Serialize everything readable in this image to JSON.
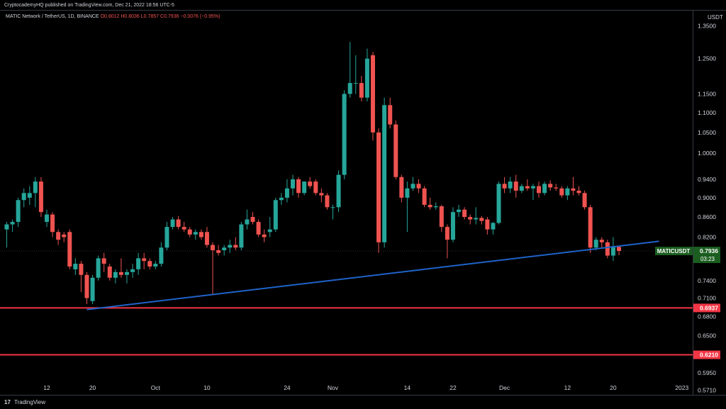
{
  "header": {
    "published": "CryptocademyHQ published on TradingView.com, Dec 21, 2022 18:56 UTC-5",
    "symbol": "MATIC Network / TetherUS, 1D, BINANCE",
    "ohlc": "O0.8012 H0.8036 L0.7857 C0.7936 −0.0076 (−0.95%)"
  },
  "price_axis": {
    "currency": "USDT",
    "symbol_tag": "MATICUSDT",
    "last_price": "0.7936",
    "countdown": "03:23"
  },
  "footer": {
    "brand": "TradingView",
    "logo": "17"
  },
  "colors": {
    "up": "#26a69a",
    "down": "#ef5350",
    "trendline": "#1f63c9",
    "support": "#f23645",
    "last_tag_bg": "#1b5e20"
  },
  "chart_data": {
    "type": "candlestick",
    "y_scale": "log",
    "ylim": [
      0.565,
      1.4
    ],
    "y_ticks": [
      "1.3500",
      "1.2500",
      "1.1500",
      "1.1000",
      "1.0500",
      "1.0000",
      "0.9400",
      "0.9000",
      "0.8600",
      "0.8200",
      "0.7400",
      "0.7100",
      "0.6800",
      "0.6500",
      "0.5950",
      "0.5710"
    ],
    "x_ticks": [
      "12",
      "20",
      "Oct",
      "10",
      "24",
      "Nov",
      "14",
      "22",
      "Dec",
      "12",
      "20",
      "2023"
    ],
    "support_levels": [
      {
        "value": 0.6937,
        "label": "0.6937"
      },
      {
        "value": 0.621,
        "label": "0.6210"
      }
    ],
    "trendline": {
      "from": [
        "Sep 19",
        0.691
      ],
      "to": [
        "Dec 28",
        0.812
      ]
    },
    "candles": [
      {
        "date": "Sep 5",
        "o": 0.835,
        "h": 0.85,
        "l": 0.8,
        "c": 0.845
      },
      {
        "date": "Sep 6",
        "o": 0.845,
        "h": 0.855,
        "l": 0.83,
        "c": 0.85
      },
      {
        "date": "Sep 7",
        "o": 0.85,
        "h": 0.9,
        "l": 0.84,
        "c": 0.895
      },
      {
        "date": "Sep 8",
        "o": 0.895,
        "h": 0.92,
        "l": 0.88,
        "c": 0.91
      },
      {
        "date": "Sep 9",
        "o": 0.9,
        "h": 0.925,
        "l": 0.885,
        "c": 0.91
      },
      {
        "date": "Sep 10",
        "o": 0.91,
        "h": 0.945,
        "l": 0.88,
        "c": 0.935
      },
      {
        "date": "Sep 11",
        "o": 0.935,
        "h": 0.945,
        "l": 0.86,
        "c": 0.87
      },
      {
        "date": "Sep 12",
        "o": 0.85,
        "h": 0.875,
        "l": 0.84,
        "c": 0.865
      },
      {
        "date": "Sep 13",
        "o": 0.865,
        "h": 0.87,
        "l": 0.82,
        "c": 0.83
      },
      {
        "date": "Sep 14",
        "o": 0.83,
        "h": 0.835,
        "l": 0.805,
        "c": 0.815
      },
      {
        "date": "Sep 15",
        "o": 0.825,
        "h": 0.83,
        "l": 0.81,
        "c": 0.82
      },
      {
        "date": "Sep 16",
        "o": 0.83,
        "h": 0.835,
        "l": 0.76,
        "c": 0.765
      },
      {
        "date": "Sep 17",
        "o": 0.76,
        "h": 0.78,
        "l": 0.75,
        "c": 0.77
      },
      {
        "date": "Sep 18",
        "o": 0.77,
        "h": 0.775,
        "l": 0.72,
        "c": 0.75
      },
      {
        "date": "Sep 19",
        "o": 0.75,
        "h": 0.755,
        "l": 0.7,
        "c": 0.71
      },
      {
        "date": "Sep 20",
        "o": 0.705,
        "h": 0.75,
        "l": 0.7,
        "c": 0.745
      },
      {
        "date": "Sep 21",
        "o": 0.745,
        "h": 0.785,
        "l": 0.74,
        "c": 0.78
      },
      {
        "date": "Sep 22",
        "o": 0.78,
        "h": 0.79,
        "l": 0.755,
        "c": 0.77
      },
      {
        "date": "Sep 23",
        "o": 0.765,
        "h": 0.77,
        "l": 0.74,
        "c": 0.745
      },
      {
        "date": "Sep 24",
        "o": 0.745,
        "h": 0.76,
        "l": 0.735,
        "c": 0.755
      },
      {
        "date": "Sep 25",
        "o": 0.755,
        "h": 0.78,
        "l": 0.745,
        "c": 0.75
      },
      {
        "date": "Sep 26",
        "o": 0.75,
        "h": 0.76,
        "l": 0.735,
        "c": 0.755
      },
      {
        "date": "Sep 27",
        "o": 0.755,
        "h": 0.77,
        "l": 0.745,
        "c": 0.76
      },
      {
        "date": "Sep 28",
        "o": 0.76,
        "h": 0.79,
        "l": 0.75,
        "c": 0.78
      },
      {
        "date": "Sep 29",
        "o": 0.78,
        "h": 0.79,
        "l": 0.76,
        "c": 0.775
      },
      {
        "date": "Sep 30",
        "o": 0.775,
        "h": 0.78,
        "l": 0.76,
        "c": 0.765
      },
      {
        "date": "Oct 1",
        "o": 0.765,
        "h": 0.775,
        "l": 0.76,
        "c": 0.77
      },
      {
        "date": "Oct 2",
        "o": 0.77,
        "h": 0.81,
        "l": 0.765,
        "c": 0.8
      },
      {
        "date": "Oct 3",
        "o": 0.8,
        "h": 0.85,
        "l": 0.795,
        "c": 0.84
      },
      {
        "date": "Oct 4",
        "o": 0.84,
        "h": 0.86,
        "l": 0.835,
        "c": 0.855
      },
      {
        "date": "Oct 5",
        "o": 0.855,
        "h": 0.862,
        "l": 0.835,
        "c": 0.84
      },
      {
        "date": "Oct 6",
        "o": 0.84,
        "h": 0.85,
        "l": 0.83,
        "c": 0.835
      },
      {
        "date": "Oct 7",
        "o": 0.835,
        "h": 0.84,
        "l": 0.82,
        "c": 0.825
      },
      {
        "date": "Oct 8",
        "o": 0.825,
        "h": 0.835,
        "l": 0.815,
        "c": 0.83
      },
      {
        "date": "Oct 9",
        "o": 0.83,
        "h": 0.835,
        "l": 0.815,
        "c": 0.82
      },
      {
        "date": "Oct 10",
        "o": 0.83,
        "h": 0.84,
        "l": 0.8,
        "c": 0.805
      },
      {
        "date": "Oct 11",
        "o": 0.805,
        "h": 0.81,
        "l": 0.715,
        "c": 0.795
      },
      {
        "date": "Oct 12",
        "o": 0.795,
        "h": 0.805,
        "l": 0.785,
        "c": 0.79
      },
      {
        "date": "Oct 13",
        "o": 0.795,
        "h": 0.805,
        "l": 0.785,
        "c": 0.8
      },
      {
        "date": "Oct 14",
        "o": 0.8,
        "h": 0.815,
        "l": 0.79,
        "c": 0.805
      },
      {
        "date": "Oct 15",
        "o": 0.805,
        "h": 0.82,
        "l": 0.795,
        "c": 0.8
      },
      {
        "date": "Oct 16",
        "o": 0.8,
        "h": 0.85,
        "l": 0.795,
        "c": 0.845
      },
      {
        "date": "Oct 17",
        "o": 0.845,
        "h": 0.875,
        "l": 0.835,
        "c": 0.855
      },
      {
        "date": "Oct 18",
        "o": 0.86,
        "h": 0.87,
        "l": 0.845,
        "c": 0.85
      },
      {
        "date": "Oct 19",
        "o": 0.85,
        "h": 0.855,
        "l": 0.82,
        "c": 0.825
      },
      {
        "date": "Oct 20",
        "o": 0.825,
        "h": 0.835,
        "l": 0.81,
        "c": 0.82
      },
      {
        "date": "Oct 21",
        "o": 0.83,
        "h": 0.86,
        "l": 0.82,
        "c": 0.835
      },
      {
        "date": "Oct 22",
        "o": 0.835,
        "h": 0.9,
        "l": 0.83,
        "c": 0.895
      },
      {
        "date": "Oct 23",
        "o": 0.895,
        "h": 0.91,
        "l": 0.885,
        "c": 0.9
      },
      {
        "date": "Oct 24",
        "o": 0.9,
        "h": 0.94,
        "l": 0.89,
        "c": 0.92
      },
      {
        "date": "Oct 25",
        "o": 0.92,
        "h": 0.95,
        "l": 0.905,
        "c": 0.94
      },
      {
        "date": "Oct 26",
        "o": 0.94,
        "h": 0.945,
        "l": 0.9,
        "c": 0.91
      },
      {
        "date": "Oct 27",
        "o": 0.91,
        "h": 0.935,
        "l": 0.905,
        "c": 0.935
      },
      {
        "date": "Oct 28",
        "o": 0.935,
        "h": 0.945,
        "l": 0.92,
        "c": 0.925
      },
      {
        "date": "Oct 29",
        "o": 0.935,
        "h": 0.94,
        "l": 0.905,
        "c": 0.91
      },
      {
        "date": "Oct 30",
        "o": 0.91,
        "h": 0.92,
        "l": 0.89,
        "c": 0.905
      },
      {
        "date": "Oct 31",
        "o": 0.905,
        "h": 0.91,
        "l": 0.875,
        "c": 0.88
      },
      {
        "date": "Nov 1",
        "o": 0.88,
        "h": 0.885,
        "l": 0.855,
        "c": 0.88
      },
      {
        "date": "Nov 2",
        "o": 0.88,
        "h": 0.96,
        "l": 0.87,
        "c": 0.95
      },
      {
        "date": "Nov 3",
        "o": 0.95,
        "h": 1.16,
        "l": 0.94,
        "c": 1.15
      },
      {
        "date": "Nov 4",
        "o": 1.15,
        "h": 1.3,
        "l": 1.14,
        "c": 1.18
      },
      {
        "date": "Nov 5",
        "o": 1.18,
        "h": 1.26,
        "l": 1.15,
        "c": 1.18
      },
      {
        "date": "Nov 6",
        "o": 1.18,
        "h": 1.2,
        "l": 1.13,
        "c": 1.14
      },
      {
        "date": "Nov 7",
        "o": 1.14,
        "h": 1.28,
        "l": 1.13,
        "c": 1.25
      },
      {
        "date": "Nov 8",
        "o": 1.26,
        "h": 1.27,
        "l": 1.03,
        "c": 1.05
      },
      {
        "date": "Nov 9",
        "o": 1.05,
        "h": 1.06,
        "l": 0.79,
        "c": 0.81
      },
      {
        "date": "Nov 10",
        "o": 0.81,
        "h": 1.14,
        "l": 0.8,
        "c": 1.12
      },
      {
        "date": "Nov 11",
        "o": 1.12,
        "h": 1.14,
        "l": 1.06,
        "c": 1.07
      },
      {
        "date": "Nov 12",
        "o": 1.07,
        "h": 1.08,
        "l": 0.94,
        "c": 0.945
      },
      {
        "date": "Nov 13",
        "o": 0.945,
        "h": 0.95,
        "l": 0.89,
        "c": 0.9
      },
      {
        "date": "Nov 14",
        "o": 0.9,
        "h": 0.935,
        "l": 0.83,
        "c": 0.92
      },
      {
        "date": "Nov 15",
        "o": 0.92,
        "h": 0.945,
        "l": 0.915,
        "c": 0.93
      },
      {
        "date": "Nov 16",
        "o": 0.93,
        "h": 0.94,
        "l": 0.91,
        "c": 0.92
      },
      {
        "date": "Nov 17",
        "o": 0.92,
        "h": 0.925,
        "l": 0.88,
        "c": 0.885
      },
      {
        "date": "Nov 18",
        "o": 0.885,
        "h": 0.9,
        "l": 0.875,
        "c": 0.88
      },
      {
        "date": "Nov 19",
        "o": 0.88,
        "h": 0.89,
        "l": 0.875,
        "c": 0.882
      },
      {
        "date": "Nov 20",
        "o": 0.882,
        "h": 0.885,
        "l": 0.83,
        "c": 0.84
      },
      {
        "date": "Nov 21",
        "o": 0.84,
        "h": 0.845,
        "l": 0.78,
        "c": 0.815
      },
      {
        "date": "Nov 22",
        "o": 0.815,
        "h": 0.88,
        "l": 0.81,
        "c": 0.87
      },
      {
        "date": "Nov 23",
        "o": 0.87,
        "h": 0.885,
        "l": 0.86,
        "c": 0.875
      },
      {
        "date": "Nov 24",
        "o": 0.875,
        "h": 0.88,
        "l": 0.855,
        "c": 0.86
      },
      {
        "date": "Nov 25",
        "o": 0.86,
        "h": 0.865,
        "l": 0.845,
        "c": 0.855
      },
      {
        "date": "Nov 26",
        "o": 0.855,
        "h": 0.88,
        "l": 0.845,
        "c": 0.858
      },
      {
        "date": "Nov 27",
        "o": 0.858,
        "h": 0.862,
        "l": 0.845,
        "c": 0.852
      },
      {
        "date": "Nov 28",
        "o": 0.855,
        "h": 0.86,
        "l": 0.825,
        "c": 0.835
      },
      {
        "date": "Nov 29",
        "o": 0.835,
        "h": 0.85,
        "l": 0.825,
        "c": 0.848
      },
      {
        "date": "Nov 30",
        "o": 0.848,
        "h": 0.935,
        "l": 0.845,
        "c": 0.93
      },
      {
        "date": "Dec 1",
        "o": 0.93,
        "h": 0.945,
        "l": 0.91,
        "c": 0.92
      },
      {
        "date": "Dec 2",
        "o": 0.92,
        "h": 0.945,
        "l": 0.91,
        "c": 0.935
      },
      {
        "date": "Dec 3",
        "o": 0.935,
        "h": 0.95,
        "l": 0.9,
        "c": 0.915
      },
      {
        "date": "Dec 4",
        "o": 0.915,
        "h": 0.93,
        "l": 0.91,
        "c": 0.925
      },
      {
        "date": "Dec 5",
        "o": 0.925,
        "h": 0.94,
        "l": 0.915,
        "c": 0.92
      },
      {
        "date": "Dec 6",
        "o": 0.92,
        "h": 0.93,
        "l": 0.895,
        "c": 0.925
      },
      {
        "date": "Dec 7",
        "o": 0.925,
        "h": 0.935,
        "l": 0.9,
        "c": 0.91
      },
      {
        "date": "Dec 8",
        "o": 0.91,
        "h": 0.935,
        "l": 0.905,
        "c": 0.93
      },
      {
        "date": "Dec 9",
        "o": 0.93,
        "h": 0.938,
        "l": 0.915,
        "c": 0.922
      },
      {
        "date": "Dec 10",
        "o": 0.922,
        "h": 0.93,
        "l": 0.915,
        "c": 0.92
      },
      {
        "date": "Dec 11",
        "o": 0.92,
        "h": 0.925,
        "l": 0.9,
        "c": 0.905
      },
      {
        "date": "Dec 12",
        "o": 0.905,
        "h": 0.925,
        "l": 0.895,
        "c": 0.92
      },
      {
        "date": "Dec 13",
        "o": 0.92,
        "h": 0.945,
        "l": 0.905,
        "c": 0.915
      },
      {
        "date": "Dec 14",
        "o": 0.915,
        "h": 0.925,
        "l": 0.905,
        "c": 0.91
      },
      {
        "date": "Dec 15",
        "o": 0.91,
        "h": 0.915,
        "l": 0.875,
        "c": 0.88
      },
      {
        "date": "Dec 16",
        "o": 0.88,
        "h": 0.885,
        "l": 0.79,
        "c": 0.8
      },
      {
        "date": "Dec 17",
        "o": 0.8,
        "h": 0.82,
        "l": 0.795,
        "c": 0.815
      },
      {
        "date": "Dec 18",
        "o": 0.815,
        "h": 0.82,
        "l": 0.8,
        "c": 0.81
      },
      {
        "date": "Dec 19",
        "o": 0.81,
        "h": 0.815,
        "l": 0.78,
        "c": 0.785
      },
      {
        "date": "Dec 20",
        "o": 0.785,
        "h": 0.82,
        "l": 0.775,
        "c": 0.801
      },
      {
        "date": "Dec 21",
        "o": 0.8012,
        "h": 0.8036,
        "l": 0.7857,
        "c": 0.7936
      }
    ]
  }
}
